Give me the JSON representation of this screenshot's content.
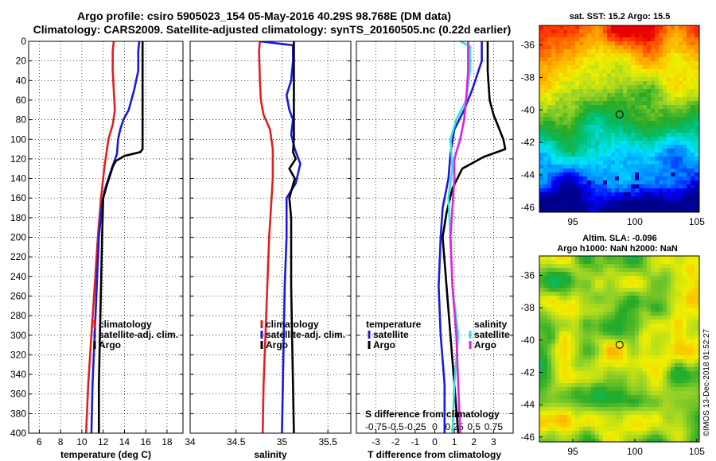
{
  "titles": {
    "line1": "Argo profile: csiro 5905023_154 05-May-2016 40.29S 98.768E (DM data)",
    "line2": "Climatology: CARS2009. Satellite-adjusted climatology: synTS_20160505.nc (0.22d earlier)"
  },
  "colors": {
    "climatology": "#e02020",
    "satellite": "#1a1adc",
    "argo": "#000000",
    "salinity_sat": "#33e0e0",
    "salinity_argo": "#e020e0"
  },
  "watermark": "©IMOS 13-Dec-2018 01:52:27",
  "chart_data": [
    {
      "type": "line",
      "id": "temperature",
      "xlabel": "temperature (deg C)",
      "ylabel": "",
      "xlim": [
        5,
        19.5
      ],
      "ylim": [
        0,
        400
      ],
      "x_ticks": [
        6,
        8,
        10,
        12,
        14,
        16,
        18
      ],
      "y_ticks": [
        0,
        20,
        40,
        60,
        80,
        100,
        120,
        140,
        160,
        180,
        200,
        220,
        240,
        260,
        280,
        300,
        320,
        340,
        360,
        380,
        400
      ],
      "grid": true,
      "legend": [
        "climatology",
        "satellite-adj. clim.",
        "Argo"
      ],
      "series": [
        {
          "name": "climatology",
          "color": "#e02020",
          "points": [
            [
              13.0,
              0
            ],
            [
              12.9,
              10
            ],
            [
              12.9,
              30
            ],
            [
              13.0,
              50
            ],
            [
              13.1,
              70
            ],
            [
              12.9,
              85
            ],
            [
              12.5,
              100
            ],
            [
              12.1,
              130
            ],
            [
              11.8,
              160
            ],
            [
              11.5,
              200
            ],
            [
              11.2,
              250
            ],
            [
              10.9,
              300
            ],
            [
              10.6,
              350
            ],
            [
              10.4,
              400
            ]
          ]
        },
        {
          "name": "satellite-adj. clim.",
          "color": "#1a1adc",
          "points": [
            [
              15.4,
              0
            ],
            [
              15.3,
              10
            ],
            [
              15.3,
              30
            ],
            [
              14.9,
              50
            ],
            [
              14.4,
              70
            ],
            [
              13.9,
              80
            ],
            [
              13.6,
              90
            ],
            [
              13.4,
              100
            ],
            [
              13.3,
              115
            ],
            [
              12.8,
              130
            ],
            [
              12.2,
              150
            ],
            [
              11.9,
              165
            ],
            [
              11.6,
              200
            ],
            [
              11.4,
              250
            ],
            [
              11.2,
              300
            ],
            [
              11.0,
              350
            ],
            [
              10.9,
              400
            ]
          ]
        },
        {
          "name": "Argo",
          "color": "#000000",
          "points": [
            [
              15.7,
              0
            ],
            [
              15.7,
              50
            ],
            [
              15.7,
              110
            ],
            [
              15.5,
              113
            ],
            [
              14.0,
              117
            ],
            [
              13.2,
              122
            ],
            [
              12.9,
              128
            ],
            [
              12.7,
              135
            ],
            [
              12.4,
              145
            ],
            [
              12.0,
              160
            ],
            [
              11.9,
              200
            ],
            [
              11.8,
              250
            ],
            [
              11.7,
              300
            ],
            [
              11.6,
              350
            ],
            [
              11.6,
              400
            ]
          ]
        }
      ]
    },
    {
      "type": "line",
      "id": "salinity",
      "xlabel": "salinity",
      "ylabel": "",
      "xlim": [
        34.0,
        35.75
      ],
      "ylim": [
        0,
        400
      ],
      "x_ticks": [
        34,
        34.5,
        35,
        35.5
      ],
      "grid": true,
      "legend": [
        "climatology",
        "satellite-adj. clim.",
        "Argo"
      ],
      "series": [
        {
          "name": "climatology",
          "color": "#e02020",
          "points": [
            [
              34.76,
              0
            ],
            [
              34.75,
              10
            ],
            [
              34.76,
              40
            ],
            [
              34.77,
              60
            ],
            [
              34.8,
              75
            ],
            [
              34.87,
              90
            ],
            [
              34.9,
              110
            ],
            [
              34.9,
              140
            ],
            [
              34.88,
              170
            ],
            [
              34.86,
              200
            ],
            [
              34.84,
              250
            ],
            [
              34.82,
              300
            ],
            [
              34.8,
              350
            ],
            [
              34.79,
              400
            ]
          ]
        },
        {
          "name": "satellite-adj. clim.",
          "color": "#1a1adc",
          "points": [
            [
              34.76,
              0
            ],
            [
              35.12,
              4
            ],
            [
              35.12,
              20
            ],
            [
              35.1,
              40
            ],
            [
              35.05,
              55
            ],
            [
              35.08,
              70
            ],
            [
              35.12,
              80
            ],
            [
              35.1,
              95
            ],
            [
              35.14,
              110
            ],
            [
              35.2,
              125
            ],
            [
              35.15,
              145
            ],
            [
              35.05,
              160
            ],
            [
              35.05,
              200
            ],
            [
              35.03,
              250
            ],
            [
              35.02,
              300
            ],
            [
              35.01,
              350
            ],
            [
              35.0,
              400
            ]
          ]
        },
        {
          "name": "Argo",
          "color": "#000000",
          "points": [
            [
              35.13,
              0
            ],
            [
              35.13,
              100
            ],
            [
              35.12,
              113
            ],
            [
              35.15,
              120
            ],
            [
              35.08,
              130
            ],
            [
              35.14,
              140
            ],
            [
              35.08,
              160
            ],
            [
              35.1,
              180
            ],
            [
              35.1,
              250
            ],
            [
              35.11,
              300
            ],
            [
              35.12,
              350
            ],
            [
              35.13,
              400
            ]
          ]
        }
      ]
    },
    {
      "type": "line",
      "id": "differences",
      "xlabel": "T difference from climatology",
      "xlabel_top": "S difference from climatology",
      "ylabel": "",
      "xlim": [
        -4,
        4
      ],
      "ylim": [
        0,
        400
      ],
      "x_ticks": [
        -3,
        -2,
        -1,
        0,
        1,
        2,
        3
      ],
      "s_ticks": [
        "-0.75",
        "-0.5",
        "-0.25",
        "0",
        "0.25",
        "0.5",
        "0.75"
      ],
      "grid": true,
      "legend_temperature": {
        "title": "temperature",
        "entries": [
          "satellite",
          "Argo"
        ]
      },
      "legend_salinity": {
        "title": "salinity",
        "entries": [
          "satellite",
          "Argo"
        ]
      },
      "series": [
        {
          "name": "temperature satellite",
          "color": "#1a1adc",
          "points": [
            [
              2.4,
              0
            ],
            [
              2.4,
              20
            ],
            [
              1.9,
              50
            ],
            [
              1.5,
              70
            ],
            [
              1.0,
              90
            ],
            [
              0.8,
              115
            ],
            [
              0.7,
              140
            ],
            [
              0.4,
              170
            ],
            [
              0.3,
              200
            ],
            [
              0.2,
              250
            ],
            [
              0.3,
              300
            ],
            [
              0.5,
              350
            ],
            [
              0.5,
              400
            ]
          ]
        },
        {
          "name": "temperature Argo",
          "color": "#000000",
          "points": [
            [
              2.7,
              0
            ],
            [
              2.7,
              30
            ],
            [
              2.8,
              60
            ],
            [
              3.0,
              75
            ],
            [
              3.3,
              90
            ],
            [
              3.5,
              100
            ],
            [
              3.6,
              110
            ],
            [
              2.5,
              118
            ],
            [
              1.4,
              130
            ],
            [
              0.9,
              150
            ],
            [
              0.6,
              175
            ],
            [
              0.4,
              200
            ],
            [
              0.6,
              250
            ],
            [
              0.8,
              300
            ],
            [
              1.0,
              350
            ],
            [
              1.2,
              400
            ]
          ]
        },
        {
          "name": "salinity satellite",
          "color": "#33e0e0",
          "points": [
            [
              1.3,
              0
            ],
            [
              1.8,
              5
            ],
            [
              1.8,
              30
            ],
            [
              1.6,
              60
            ],
            [
              1.1,
              80
            ],
            [
              0.8,
              100
            ],
            [
              0.9,
              130
            ],
            [
              0.7,
              160
            ],
            [
              0.8,
              200
            ],
            [
              0.9,
              250
            ],
            [
              1.2,
              300
            ],
            [
              1.0,
              350
            ],
            [
              0.9,
              400
            ]
          ]
        },
        {
          "name": "salinity Argo",
          "color": "#e020e0",
          "points": [
            [
              1.7,
              0
            ],
            [
              1.7,
              30
            ],
            [
              1.6,
              60
            ],
            [
              1.5,
              80
            ],
            [
              1.3,
              100
            ],
            [
              1.0,
              120
            ],
            [
              1.0,
              140
            ],
            [
              0.9,
              170
            ],
            [
              0.8,
              200
            ],
            [
              0.9,
              250
            ],
            [
              1.1,
              300
            ],
            [
              1.2,
              350
            ],
            [
              1.3,
              400
            ]
          ]
        }
      ]
    },
    {
      "type": "heatmap",
      "id": "sst-map",
      "title": "sat. SST: 15.2 Argo: 15.5",
      "x_ticks": [
        95,
        100,
        105
      ],
      "y_ticks": [
        -36,
        -38,
        -40,
        -42,
        -44,
        -46
      ],
      "xlim": [
        92.3,
        105.2
      ],
      "ylim": [
        -46.3,
        -34.8
      ],
      "marker": {
        "lon": 98.768,
        "lat": -40.29
      }
    },
    {
      "type": "heatmap",
      "id": "sla-map",
      "title": "Altim. SLA: -0.096",
      "subtitle": "Argo h1000: NaN h2000: NaN",
      "x_ticks": [
        95,
        100,
        105
      ],
      "y_ticks": [
        -36,
        -38,
        -40,
        -42,
        -44,
        -46
      ],
      "xlim": [
        92.3,
        105.2
      ],
      "ylim": [
        -46.3,
        -34.8
      ],
      "marker": {
        "lon": 98.768,
        "lat": -40.29
      }
    }
  ]
}
